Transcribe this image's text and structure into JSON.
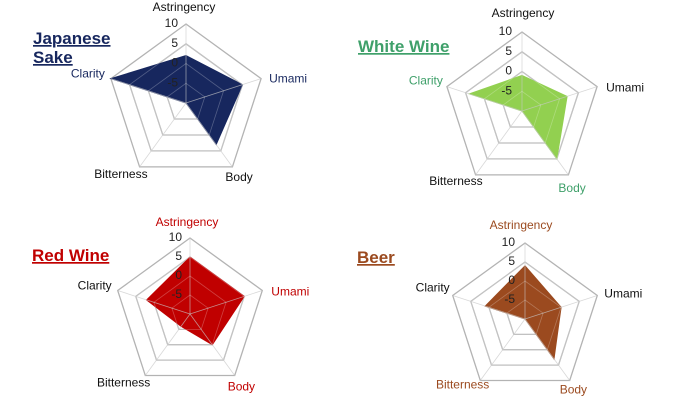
{
  "chart_data": [
    {
      "type": "radar",
      "title_lines": [
        "Japanese",
        "Sake"
      ],
      "axes": [
        "Astringency",
        "Umami",
        "Body",
        "Bitterness",
        "Clarity"
      ],
      "ticks": [
        "10",
        "5",
        "0",
        "-5"
      ],
      "range": [
        -10,
        10
      ],
      "values": [
        2,
        5,
        3,
        -10,
        10
      ],
      "color": "#17275e",
      "title_color": "#17275e",
      "label_colors": [
        "#111111",
        "#17275e",
        "#111111",
        "#111111",
        "#17275e"
      ]
    },
    {
      "type": "radar",
      "title_lines": [
        "White Wine"
      ],
      "axes": [
        "Astringency",
        "Umami",
        "Body",
        "Bitterness",
        "Clarity"
      ],
      "ticks": [
        "10",
        "5",
        "0",
        "-5"
      ],
      "range": [
        -10,
        10
      ],
      "values": [
        -1,
        2,
        5,
        -10,
        4
      ],
      "color": "#92d050",
      "title_color": "#3fa06a",
      "label_colors": [
        "#111111",
        "#111111",
        "#3fa06a",
        "#111111",
        "#3fa06a"
      ]
    },
    {
      "type": "radar",
      "title_lines": [
        "Red Wine"
      ],
      "axes": [
        "Astringency",
        "Umami",
        "Body",
        "Bitterness",
        "Clarity"
      ],
      "ticks": [
        "10",
        "5",
        "0",
        "-5"
      ],
      "range": [
        -10,
        10
      ],
      "values": [
        5,
        5,
        0,
        -6,
        2
      ],
      "color": "#c00000",
      "title_color": "#c00000",
      "label_colors": [
        "#c00000",
        "#c00000",
        "#c00000",
        "#111111",
        "#111111"
      ]
    },
    {
      "type": "radar",
      "title_lines": [
        "Beer"
      ],
      "axes": [
        "Astringency",
        "Umami",
        "Body",
        "Bitterness",
        "Clarity"
      ],
      "ticks": [
        "10",
        "5",
        "0",
        "-5"
      ],
      "range": [
        -10,
        10
      ],
      "values": [
        4,
        0,
        3,
        -10,
        1
      ],
      "color": "#9b4a1f",
      "title_color": "#9b4a1f",
      "label_colors": [
        "#9b4a1f",
        "#111111",
        "#9b4a1f",
        "#9b4a1f",
        "#111111"
      ]
    }
  ]
}
